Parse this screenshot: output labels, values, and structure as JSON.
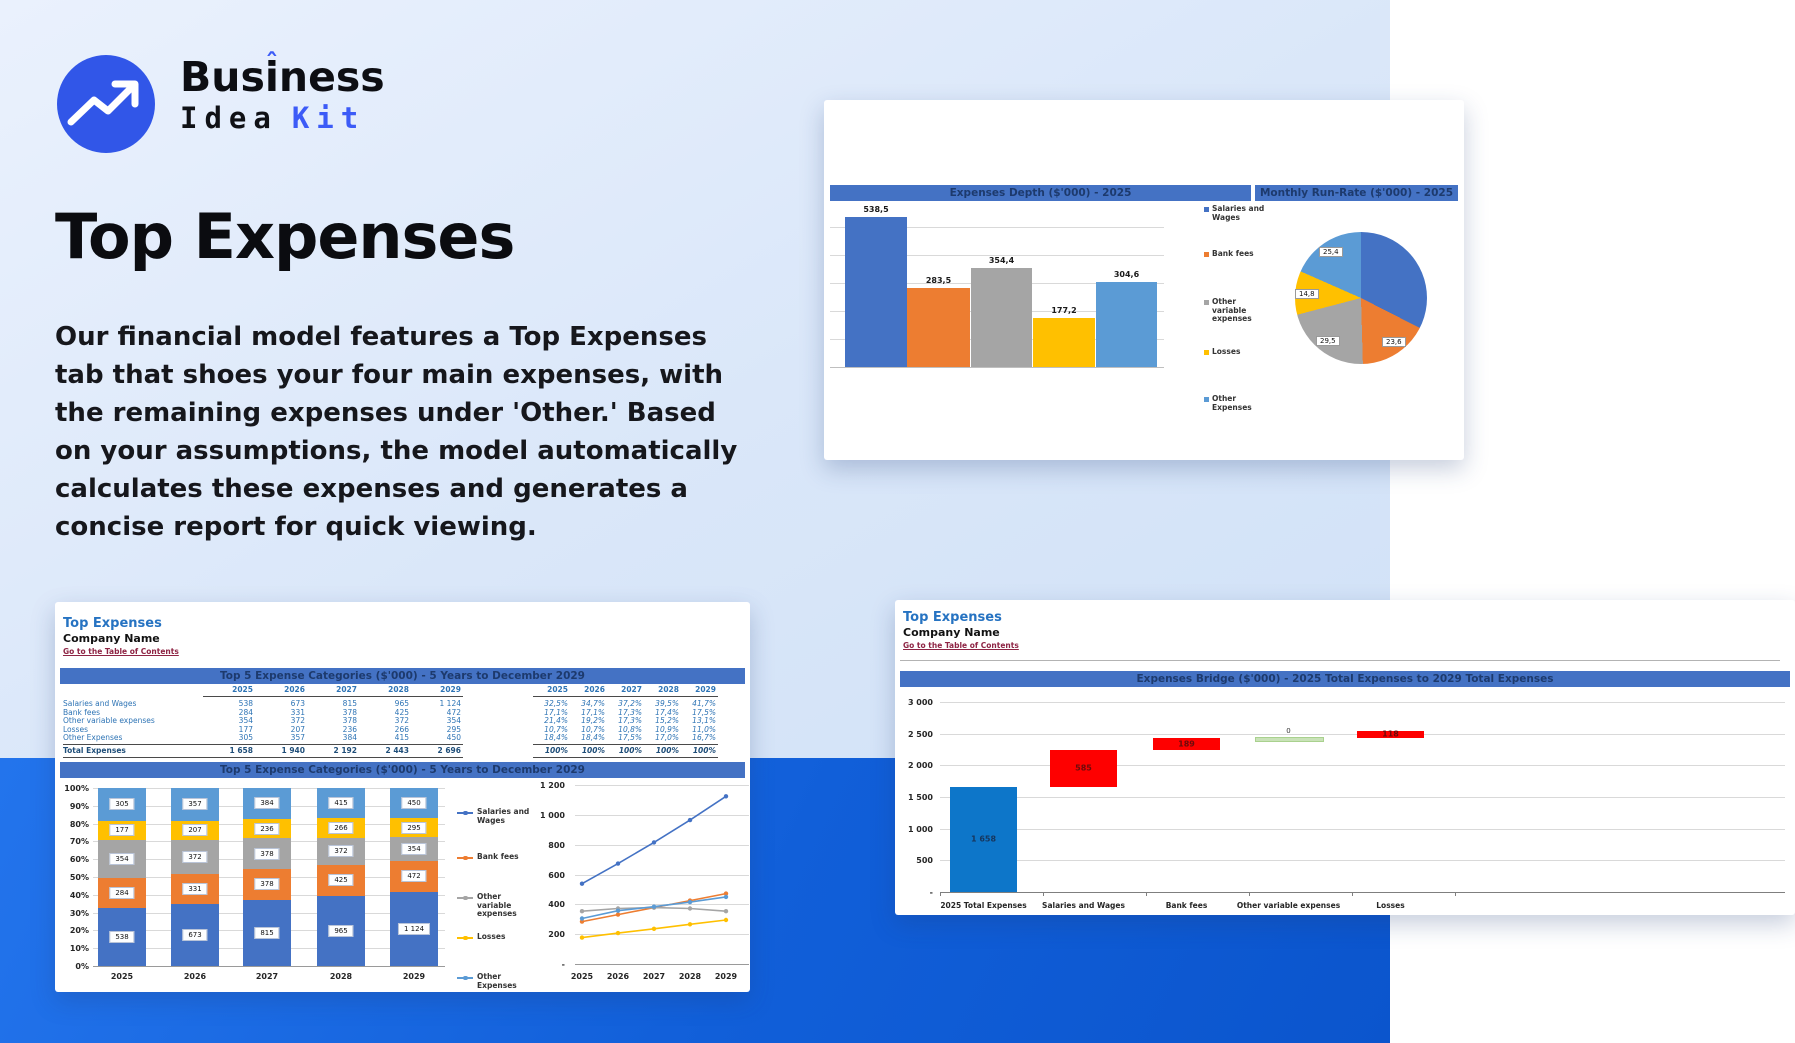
{
  "logo": {
    "w1a": "Bus",
    "w1b": "i",
    "w1c": "ness",
    "accent_char": "ˆ",
    "word_bottom_black": "Idea",
    "word_bottom_blue": "Kit"
  },
  "hero": {
    "title": "Top Expenses",
    "paragraph": "Our financial model features a Top Expenses tab that shoes your four main expenses, with the remaining expenses under 'Other.' Based on your assumptions, the model automatically calculates these expenses and generates a concise report for quick viewing."
  },
  "series_legend": [
    "Salaries and Wages",
    "Bank fees",
    "Other variable expenses",
    "Losses",
    "Other Expenses"
  ],
  "series_colors": [
    "#4472c4",
    "#ed7d31",
    "#a5a5a5",
    "#ffc000",
    "#5b9bd5"
  ],
  "depth_card": {
    "header_left": "Expenses Depth ($'000) - 2025",
    "header_right": "Monthly Run-Rate ($'000) - 2025",
    "chart_data": {
      "type": "bar",
      "title": "Expenses Depth ($'000) - 2025",
      "categories": [
        "Salaries and Wages",
        "Bank fees",
        "Other variable expenses",
        "Losses",
        "Other Expenses"
      ],
      "values": [
        538.5,
        283.5,
        354.4,
        177.2,
        304.6
      ],
      "labels": [
        "538,5",
        "283,5",
        "354,4",
        "177,2",
        "304,6"
      ],
      "ylim": [
        0,
        600
      ],
      "grid": true,
      "legend_position": "right"
    },
    "pie_chart_data": {
      "type": "pie",
      "title": "Monthly Run-Rate ($'000) - 2025",
      "categories": [
        "Salaries and Wages",
        "Bank fees",
        "Other variable expenses",
        "Losses",
        "Other Expenses"
      ],
      "values": [
        44.9,
        23.6,
        29.5,
        14.8,
        25.4
      ],
      "visible_labels": [
        "25,4",
        "14,8",
        "29,5",
        "23,6"
      ]
    }
  },
  "top5_card": {
    "title": "Top Expenses",
    "company": "Company Name",
    "toc_link": "Go to the Table of Contents",
    "band_title": "Top 5 Expense Categories ($'000) - 5 Years to December 2029",
    "years": [
      "2025",
      "2026",
      "2027",
      "2028",
      "2029"
    ],
    "table": {
      "rows": [
        {
          "label": "Salaries and Wages",
          "values": [
            "538",
            "673",
            "815",
            "965",
            "1 124"
          ],
          "pct": [
            "32,5%",
            "34,7%",
            "37,2%",
            "39,5%",
            "41,7%"
          ]
        },
        {
          "label": "Bank fees",
          "values": [
            "284",
            "331",
            "378",
            "425",
            "472"
          ],
          "pct": [
            "17,1%",
            "17,1%",
            "17,3%",
            "17,4%",
            "17,5%"
          ]
        },
        {
          "label": "Other variable expenses",
          "values": [
            "354",
            "372",
            "378",
            "372",
            "354"
          ],
          "pct": [
            "21,4%",
            "19,2%",
            "17,3%",
            "15,2%",
            "13,1%"
          ]
        },
        {
          "label": "Losses",
          "values": [
            "177",
            "207",
            "236",
            "266",
            "295"
          ],
          "pct": [
            "10,7%",
            "10,7%",
            "10,8%",
            "10,9%",
            "11,0%"
          ]
        },
        {
          "label": "Other Expenses",
          "values": [
            "305",
            "357",
            "384",
            "415",
            "450"
          ],
          "pct": [
            "18,4%",
            "18,4%",
            "17,5%",
            "17,0%",
            "16,7%"
          ]
        }
      ],
      "total": {
        "label": "Total Expenses",
        "values": [
          "1 658",
          "1 940",
          "2 192",
          "2 443",
          "2 696"
        ],
        "pct": [
          "100%",
          "100%",
          "100%",
          "100%",
          "100%"
        ]
      }
    },
    "stacked_chart_data": {
      "type": "bar-stacked-100",
      "title": "Top 5 Expense Categories ($'000) - 5 Years to December 2029",
      "categories": [
        "2025",
        "2026",
        "2027",
        "2028",
        "2029"
      ],
      "y_ticks": [
        "100%",
        "90%",
        "80%",
        "70%",
        "60%",
        "50%",
        "40%",
        "30%",
        "20%",
        "10%",
        "0%"
      ],
      "series": [
        {
          "name": "Salaries and Wages",
          "pct": [
            32.5,
            34.7,
            37.2,
            39.5,
            41.7
          ],
          "labels": [
            "538",
            "673",
            "815",
            "965",
            "1 124"
          ]
        },
        {
          "name": "Bank fees",
          "pct": [
            17.1,
            17.1,
            17.3,
            17.4,
            17.5
          ],
          "labels": [
            "284",
            "331",
            "378",
            "425",
            "472"
          ]
        },
        {
          "name": "Other variable expenses",
          "pct": [
            21.4,
            19.2,
            17.3,
            15.2,
            13.1
          ],
          "labels": [
            "354",
            "372",
            "378",
            "372",
            "354"
          ]
        },
        {
          "name": "Losses",
          "pct": [
            10.7,
            10.7,
            10.8,
            10.9,
            11.0
          ],
          "labels": [
            "177",
            "207",
            "236",
            "266",
            "295"
          ]
        },
        {
          "name": "Other Expenses",
          "pct": [
            18.4,
            18.4,
            17.5,
            17.0,
            16.7
          ],
          "labels": [
            "305",
            "357",
            "384",
            "415",
            "450"
          ]
        }
      ]
    },
    "line_chart_data": {
      "type": "line",
      "x": [
        "2025",
        "2026",
        "2027",
        "2028",
        "2029"
      ],
      "y_ticks": [
        "1 200",
        "1 000",
        "800",
        "600",
        "400",
        "200",
        "-"
      ],
      "ymax": 1200,
      "series": [
        {
          "name": "Salaries and Wages",
          "values": [
            538,
            673,
            815,
            965,
            1124
          ]
        },
        {
          "name": "Bank fees",
          "values": [
            284,
            331,
            378,
            425,
            472
          ]
        },
        {
          "name": "Other variable expenses",
          "values": [
            354,
            372,
            378,
            372,
            354
          ]
        },
        {
          "name": "Losses",
          "values": [
            177,
            207,
            236,
            266,
            295
          ]
        },
        {
          "name": "Other Expenses",
          "values": [
            305,
            357,
            384,
            415,
            450
          ]
        }
      ]
    }
  },
  "bridge_card": {
    "title": "Top Expenses",
    "company": "Company Name",
    "toc_link": "Go to the Table of Contents",
    "band_title": "Expenses Bridge ($'000) - 2025 Total Expenses to 2029 Total Expenses",
    "chart_data": {
      "type": "waterfall",
      "title": "Expenses Bridge ($'000) - 2025 Total Expenses to 2029 Total Expenses",
      "y_ticks": [
        "3 000",
        "2 500",
        "2 000",
        "1 500",
        "1 000",
        "500",
        "-"
      ],
      "ymax": 3000,
      "bars": [
        {
          "label": "2025 Total Expenses",
          "start": 0,
          "end": 1658,
          "text": "1 658",
          "kind": "base"
        },
        {
          "label": "Salaries and Wages",
          "start": 1658,
          "end": 2243,
          "text": "585",
          "kind": "increase"
        },
        {
          "label": "Bank fees",
          "start": 2243,
          "end": 2432,
          "text": "189",
          "kind": "increase"
        },
        {
          "label": "Other variable expenses",
          "start": 2432,
          "end": 2432,
          "text": "0",
          "kind": "zero"
        },
        {
          "label": "Losses",
          "start": 2432,
          "end": 2550,
          "text": "118",
          "kind": "increase"
        }
      ],
      "colors": {
        "base": "#0d76c9",
        "increase": "#fe0000",
        "zero": "#c9e2b8"
      }
    }
  }
}
